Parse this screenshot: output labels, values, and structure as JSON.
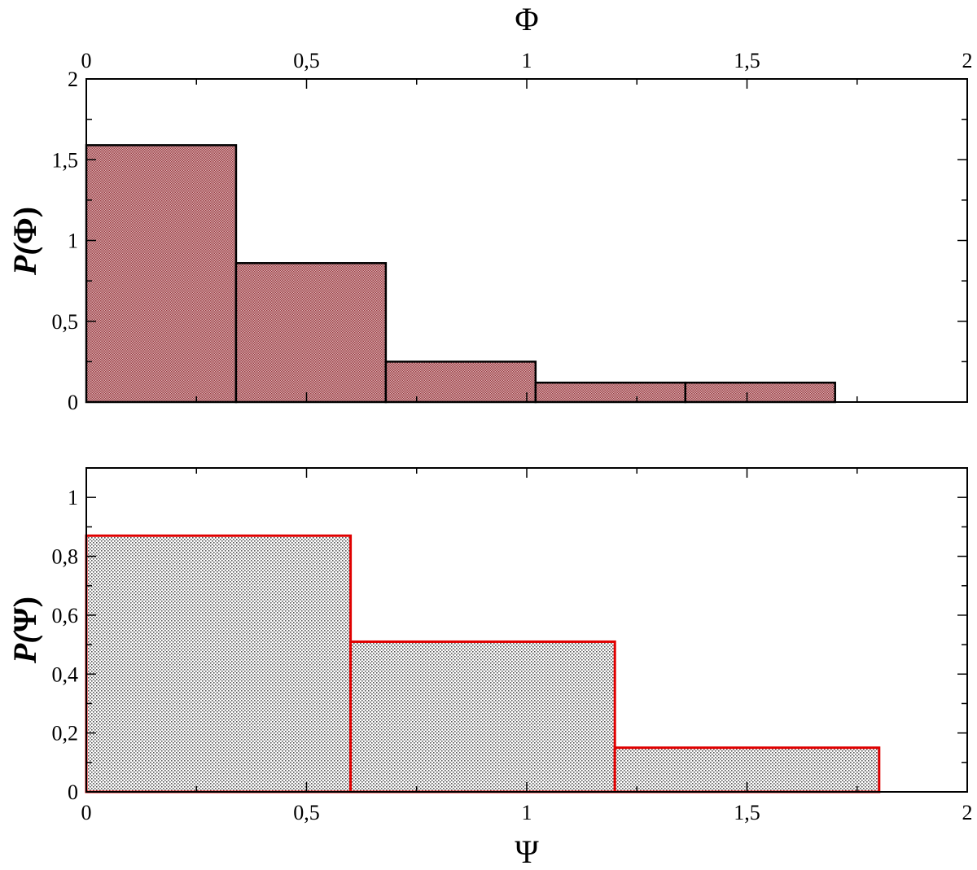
{
  "chart_data": [
    {
      "type": "bar",
      "subtype": "histogram",
      "xlabel": "Φ",
      "xlabel_position": "top",
      "ylabel_var": "P(",
      "ylabel_sym": "Φ",
      "ylabel_close": ")",
      "xlim": [
        0,
        2
      ],
      "ylim": [
        0,
        2
      ],
      "xticks": [
        "0",
        "0,5",
        "1",
        "1,5",
        "2"
      ],
      "yticks": [
        "0",
        "0,5",
        "1",
        "1,5",
        "2"
      ],
      "bins": [
        {
          "x0": 0.0,
          "x1": 0.34,
          "value": 1.59
        },
        {
          "x0": 0.34,
          "x1": 0.68,
          "value": 0.86
        },
        {
          "x0": 0.68,
          "x1": 1.02,
          "value": 0.25
        },
        {
          "x0": 1.02,
          "x1": 1.36,
          "value": 0.12
        },
        {
          "x0": 1.36,
          "x1": 1.7,
          "value": 0.12
        }
      ],
      "fill": "#c9898c",
      "edge": "#000000"
    },
    {
      "type": "bar",
      "subtype": "histogram",
      "xlabel": "Ψ",
      "xlabel_position": "bottom",
      "ylabel_var": "P(",
      "ylabel_sym": "Ψ",
      "ylabel_close": ")",
      "xlim": [
        0,
        2
      ],
      "ylim": [
        0,
        1.1
      ],
      "xticks": [
        "0",
        "0,5",
        "1",
        "1,5",
        "2"
      ],
      "yticks": [
        "0",
        "0,2",
        "0,4",
        "0,6",
        "0,8",
        "1"
      ],
      "bins": [
        {
          "x0": 0.0,
          "x1": 0.6,
          "value": 0.87
        },
        {
          "x0": 0.6,
          "x1": 1.2,
          "value": 0.51
        },
        {
          "x0": 1.2,
          "x1": 1.8,
          "value": 0.15
        },
        {
          "x0": 1.8,
          "x1": 2.0,
          "value": 0.0
        }
      ],
      "fill": "#e4e4e4",
      "edge": "#e00000"
    }
  ]
}
